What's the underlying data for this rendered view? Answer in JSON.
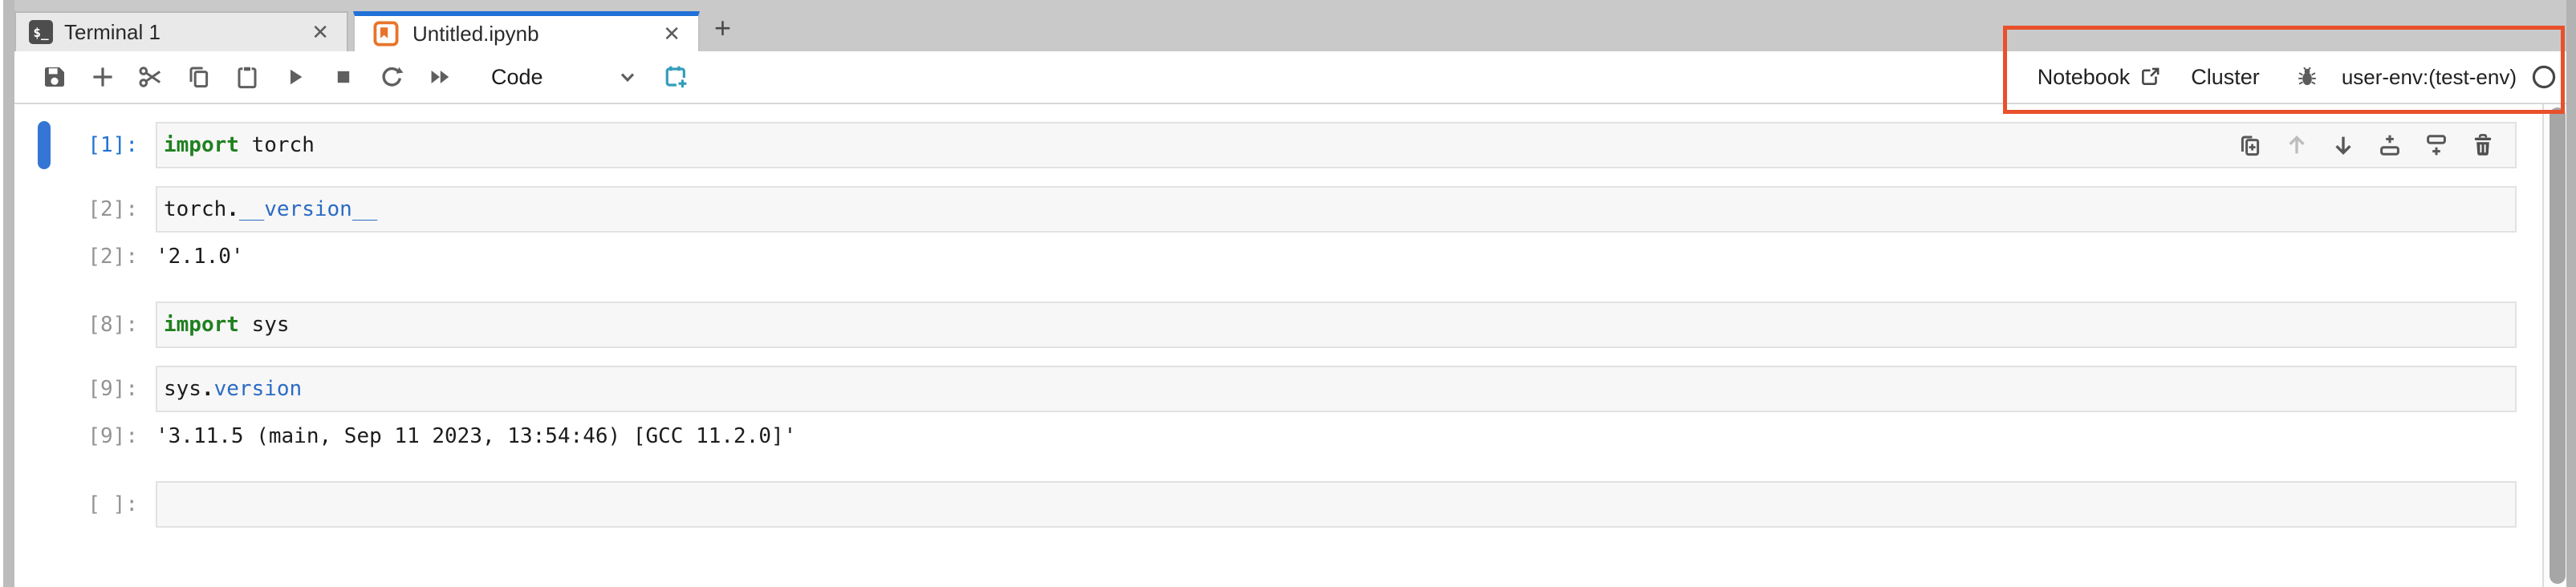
{
  "colors": {
    "accent_blue": "#2271d8",
    "active_cell_bar": "#3575d4",
    "annotation_orange": "#e8502b",
    "teal_action": "#339eba",
    "keyword_green": "#208020",
    "property_blue": "#2b6bc4",
    "prompt_active": "#2172d2",
    "prompt_gray": "#939393",
    "notebook_icon_orange": "#e8742a",
    "cell_bg": "#f7f7f7"
  },
  "tabbar": {
    "tabs": [
      {
        "label": "Terminal 1",
        "icon": "terminal-icon",
        "icon_glyph": "$_",
        "active": false,
        "close_glyph": "✕"
      },
      {
        "label": "Untitled.ipynb",
        "icon": "notebook-icon",
        "active": true,
        "close_glyph": "✕"
      }
    ],
    "new_tab_glyph": "+"
  },
  "toolbar": {
    "buttons": [
      "save-icon",
      "add-cell-icon",
      "cut-cell-icon",
      "copy-cell-icon",
      "paste-cell-icon",
      "run-cell-icon",
      "stop-kernel-icon",
      "restart-kernel-icon",
      "restart-run-all-icon"
    ],
    "cell_type_selected": "Code",
    "extra_buttons": [
      "new-launcher-teal-icon"
    ]
  },
  "kernel_bar": {
    "notebook_label": "Notebook",
    "notebook_icon": "external-link-icon",
    "cluster_label": "Cluster",
    "debugger_icon": "bug-icon",
    "env_label": "user-env:(test-env)",
    "kernel_status_icon": "kernel-idle-circle-icon"
  },
  "cell_toolbar": {
    "icons": [
      {
        "name": "duplicate-cell-icon",
        "disabled": false
      },
      {
        "name": "move-cell-up-icon",
        "disabled": true
      },
      {
        "name": "move-cell-down-icon",
        "disabled": false
      },
      {
        "name": "insert-cell-above-icon",
        "disabled": false
      },
      {
        "name": "insert-cell-below-icon",
        "disabled": false
      },
      {
        "name": "delete-cell-icon",
        "disabled": false
      }
    ]
  },
  "cells": [
    {
      "kind": "code",
      "prompt": "[1]:",
      "active": true,
      "has_toolbar": true,
      "tokens": [
        {
          "text": "import",
          "style": "keyword"
        },
        {
          "text": " torch",
          "style": "plain"
        }
      ]
    },
    {
      "kind": "code",
      "prompt": "[2]:",
      "tokens": [
        {
          "text": "torch",
          "style": "plain"
        },
        {
          "text": ".",
          "style": "punct"
        },
        {
          "text": "__version__",
          "style": "property"
        }
      ]
    },
    {
      "kind": "output",
      "prompt": "[2]:",
      "text": "'2.1.0'"
    },
    {
      "kind": "code",
      "prompt": "[8]:",
      "tokens": [
        {
          "text": "import",
          "style": "keyword"
        },
        {
          "text": " sys",
          "style": "plain"
        }
      ]
    },
    {
      "kind": "code",
      "prompt": "[9]:",
      "tokens": [
        {
          "text": "sys",
          "style": "plain"
        },
        {
          "text": ".",
          "style": "punct"
        },
        {
          "text": "version",
          "style": "property"
        }
      ]
    },
    {
      "kind": "output",
      "prompt": "[9]:",
      "text": "'3.11.5 (main, Sep 11 2023, 13:54:46) [GCC 11.2.0]'"
    },
    {
      "kind": "code",
      "prompt": "[ ]:",
      "tokens": []
    }
  ]
}
